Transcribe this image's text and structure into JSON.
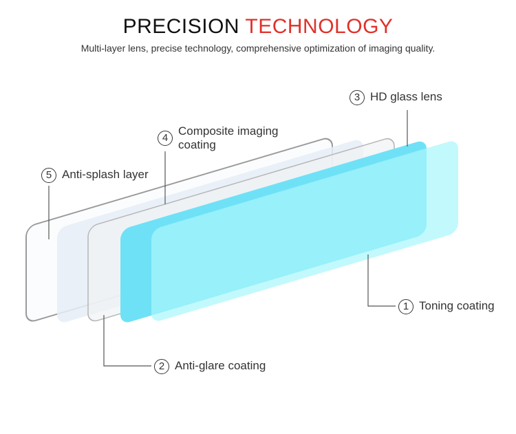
{
  "header": {
    "title_part1": "PRECISION",
    "title_part2": "TECHNOLOGY",
    "subtitle": "Multi-layer lens, precise technology, comprehensive optimization of imaging quality."
  },
  "colors": {
    "accent": "#e0302a",
    "toning": "#b5f8fd",
    "hd_glass": "#6fe1f6",
    "composite": "#e8eef7"
  },
  "layers": [
    {
      "number": "1",
      "label": "Toning coating"
    },
    {
      "number": "2",
      "label": "Anti-glare coating"
    },
    {
      "number": "3",
      "label": "HD glass lens"
    },
    {
      "number": "4",
      "label": "Composite imaging coating"
    },
    {
      "number": "5",
      "label": "Anti-splash layer"
    }
  ]
}
